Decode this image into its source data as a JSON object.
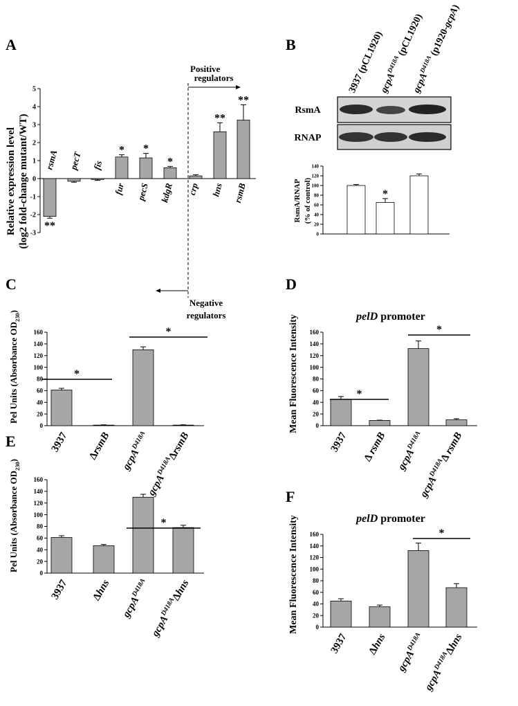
{
  "chart_data": [
    {
      "type": "bar",
      "panel": "A",
      "ylabel": [
        [
          {
            "text": "Relative expression level"
          }
        ],
        [
          {
            "text": "(log2 fold-change mutant/WT)"
          }
        ]
      ],
      "categories": [
        [
          {
            "text": "rsmA",
            "i": true
          }
        ],
        [
          {
            "text": "pecT",
            "i": true
          }
        ],
        [
          {
            "text": "fis",
            "i": true
          }
        ],
        [
          {
            "text": "fur",
            "i": true
          }
        ],
        [
          {
            "text": "pecS",
            "i": true
          }
        ],
        [
          {
            "text": "kdgR",
            "i": true
          }
        ],
        [
          {
            "text": "crp",
            "i": true
          }
        ],
        [
          {
            "text": "hns",
            "i": true
          }
        ],
        [
          {
            "text": "rsmB",
            "i": true
          }
        ]
      ],
      "values": [
        -2.1,
        -0.15,
        -0.05,
        1.2,
        1.15,
        0.6,
        0.15,
        2.6,
        3.25
      ],
      "errors": [
        0.1,
        0.05,
        0.05,
        0.12,
        0.25,
        0.08,
        0.06,
        0.5,
        0.85
      ],
      "bar_labels": [
        "**",
        null,
        null,
        "*",
        "*",
        "*",
        null,
        "**",
        "**"
      ],
      "ylim": [
        -3,
        5
      ],
      "yticks": [
        -3,
        -2,
        -1,
        0,
        1,
        2,
        3,
        4,
        5
      ],
      "color": "#a6a6a6",
      "positive_label": [
        "Positive",
        "regulators"
      ],
      "negative_label": [
        "Negative",
        "regulators"
      ]
    },
    {
      "type": "bar",
      "panel": "B",
      "ylabel": [
        [
          {
            "text": "RsmA/RNAP"
          }
        ],
        [
          {
            "text": "(% of control)"
          }
        ]
      ],
      "categories": [
        [
          {
            "text": "3937 (pCL1920)"
          }
        ],
        [
          {
            "text": "gcpA",
            "i": true
          },
          {
            "text": "D418A",
            "i": true,
            "sup": true
          },
          {
            "text": " (pCL1920)"
          }
        ],
        [
          {
            "text": "gcpA",
            "i": true
          },
          {
            "text": "D418A",
            "i": true,
            "sup": true
          },
          {
            "text": " (p1920-"
          },
          {
            "text": "gcpA",
            "i": true
          },
          {
            "text": ")"
          }
        ]
      ],
      "blot_rows": [
        "RsmA",
        "RNAP"
      ],
      "values": [
        100,
        65,
        120
      ],
      "errors": [
        2,
        8,
        4
      ],
      "bar_labels": [
        null,
        "*",
        null
      ],
      "ylim": [
        0,
        140
      ],
      "yticks": [
        0,
        20,
        40,
        60,
        80,
        100,
        120,
        140
      ],
      "color": "#ffffff"
    },
    {
      "type": "bar",
      "panel": "C",
      "ylabel": [
        [
          {
            "text": "Pel Units (Absorbance OD"
          },
          {
            "text": "230",
            "sub": true
          },
          {
            "text": ")"
          }
        ]
      ],
      "categories": [
        [
          {
            "text": "3937"
          }
        ],
        [
          {
            "text": "Δ"
          },
          {
            "text": "rsmB",
            "i": true
          }
        ],
        [
          {
            "text": "gcpA",
            "i": true
          },
          {
            "text": "D418A",
            "i": true,
            "sup": true
          }
        ],
        [
          {
            "text": "gcpA",
            "i": true
          },
          {
            "text": "D418A",
            "i": true,
            "sup": true
          },
          {
            "text": "Δ"
          },
          {
            "text": "rsmB",
            "i": true
          }
        ]
      ],
      "values": [
        61,
        1,
        130,
        1
      ],
      "errors": [
        3,
        0.5,
        5,
        0.5
      ],
      "significance": [
        "*",
        "*"
      ],
      "ylim": [
        0,
        160
      ],
      "yticks": [
        0,
        20,
        40,
        60,
        80,
        100,
        120,
        140,
        160
      ],
      "color": "#a6a6a6"
    },
    {
      "type": "bar",
      "panel": "D",
      "title": [
        {
          "text": "pelD",
          "i": true
        },
        {
          "text": " promoter"
        }
      ],
      "ylabel": [
        [
          {
            "text": "Mean Fluorescence Intensity"
          }
        ]
      ],
      "categories": [
        [
          {
            "text": "3937"
          }
        ],
        [
          {
            "text": "Δ "
          },
          {
            "text": "rsmB",
            "i": true
          }
        ],
        [
          {
            "text": "gcpA",
            "i": true
          },
          {
            "text": "D418A",
            "i": true,
            "sup": true
          }
        ],
        [
          {
            "text": "gcpA",
            "i": true
          },
          {
            "text": "D418A",
            "i": true,
            "sup": true
          },
          {
            "text": "Δ "
          },
          {
            "text": "rsmB",
            "i": true
          }
        ]
      ],
      "values": [
        45,
        9,
        132,
        10
      ],
      "errors": [
        5,
        0.5,
        13,
        2
      ],
      "significance": [
        "*",
        "*"
      ],
      "ylim": [
        0,
        160
      ],
      "yticks": [
        0,
        20,
        40,
        60,
        80,
        100,
        120,
        140,
        160
      ],
      "color": "#a6a6a6"
    },
    {
      "type": "bar",
      "panel": "E",
      "ylabel": [
        [
          {
            "text": "Pel Units (Absorbance OD"
          },
          {
            "text": "230",
            "sub": true
          },
          {
            "text": ")"
          }
        ]
      ],
      "categories": [
        [
          {
            "text": "3937"
          }
        ],
        [
          {
            "text": "Δ"
          },
          {
            "text": "hns",
            "i": true
          }
        ],
        [
          {
            "text": "gcpA",
            "i": true
          },
          {
            "text": "D418A",
            "i": true,
            "sup": true
          }
        ],
        [
          {
            "text": "gcpA",
            "i": true
          },
          {
            "text": "D418A",
            "i": true,
            "sup": true
          },
          {
            "text": "Δ"
          },
          {
            "text": "hns",
            "i": true
          }
        ]
      ],
      "values": [
        61,
        47,
        130,
        78
      ],
      "errors": [
        3,
        2,
        5,
        4
      ],
      "significance": [
        "*"
      ],
      "ylim": [
        0,
        160
      ],
      "yticks": [
        0,
        20,
        40,
        60,
        80,
        100,
        120,
        140,
        160
      ],
      "color": "#a6a6a6"
    },
    {
      "type": "bar",
      "panel": "F",
      "title": [
        {
          "text": "pelD",
          "i": true
        },
        {
          "text": " promoter"
        }
      ],
      "ylabel": [
        [
          {
            "text": "Mean Fluorescence Intensity"
          }
        ]
      ],
      "categories": [
        [
          {
            "text": "3937"
          }
        ],
        [
          {
            "text": "Δ"
          },
          {
            "text": "hns",
            "i": true
          }
        ],
        [
          {
            "text": "gcpA",
            "i": true
          },
          {
            "text": "D418A",
            "i": true,
            "sup": true
          }
        ],
        [
          {
            "text": "gcpA",
            "i": true
          },
          {
            "text": "D418A",
            "i": true,
            "sup": true
          },
          {
            "text": "Δ"
          },
          {
            "text": "hns",
            "i": true
          }
        ]
      ],
      "values": [
        45,
        35,
        132,
        68
      ],
      "errors": [
        4,
        3,
        13,
        7
      ],
      "significance": [
        "*"
      ],
      "ylim": [
        0,
        160
      ],
      "yticks": [
        0,
        20,
        40,
        60,
        80,
        100,
        120,
        140,
        160
      ],
      "color": "#a6a6a6"
    }
  ]
}
